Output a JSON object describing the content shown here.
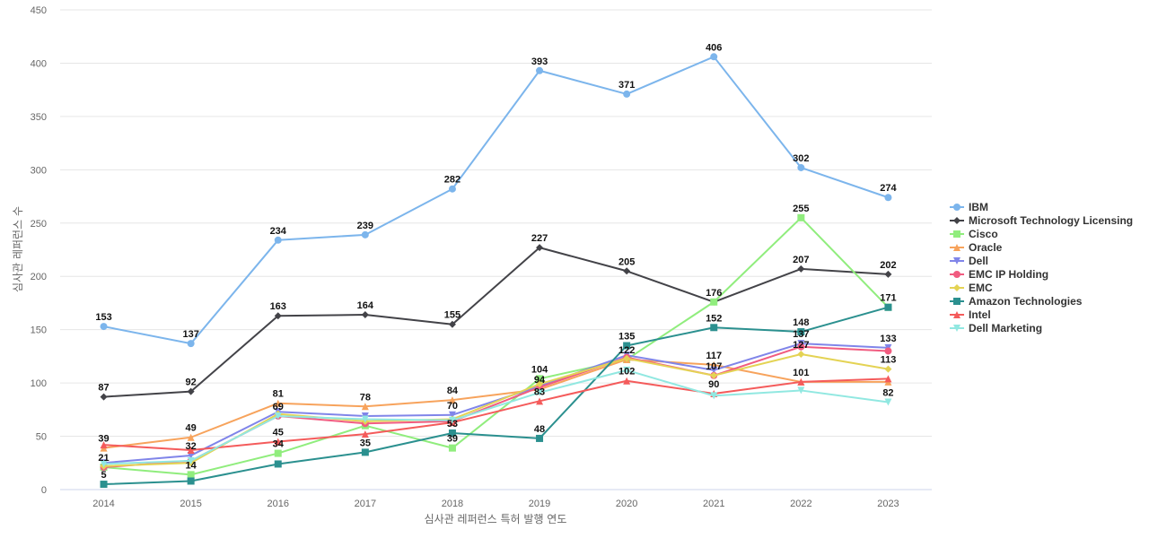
{
  "chart_data": {
    "type": "line",
    "xlabel": "심사관 레퍼런스 특허 발행 연도",
    "ylabel": "심사관 레퍼런스 수",
    "x": [
      "2014",
      "2015",
      "2016",
      "2017",
      "2018",
      "2019",
      "2020",
      "2021",
      "2022",
      "2023"
    ],
    "ylim": [
      0,
      450
    ],
    "yticks": [
      0,
      50,
      100,
      150,
      200,
      250,
      300,
      350,
      400,
      450
    ],
    "grid": true,
    "legend_position": "right",
    "series": [
      {
        "name": "IBM",
        "color": "#7cb5ec",
        "marker": "circle",
        "values": [
          153,
          137,
          234,
          239,
          282,
          393,
          371,
          406,
          302,
          274
        ],
        "labeled": [
          true,
          true,
          true,
          true,
          true,
          true,
          true,
          true,
          true,
          true
        ]
      },
      {
        "name": "Microsoft Technology Licensing",
        "color": "#434348",
        "marker": "diamond",
        "values": [
          87,
          92,
          163,
          164,
          155,
          227,
          205,
          176,
          207,
          202
        ],
        "labeled": [
          true,
          true,
          true,
          true,
          true,
          true,
          true,
          false,
          true,
          true
        ]
      },
      {
        "name": "Cisco",
        "color": "#90ed7d",
        "marker": "square",
        "values": [
          21,
          14,
          34,
          60,
          39,
          104,
          122,
          176,
          255,
          171
        ],
        "labeled": [
          true,
          true,
          true,
          false,
          true,
          true,
          true,
          true,
          true,
          true
        ]
      },
      {
        "name": "Oracle",
        "color": "#f7a35c",
        "marker": "triangle",
        "values": [
          39,
          49,
          81,
          78,
          84,
          94,
          122,
          117,
          101,
          101
        ],
        "labeled": [
          true,
          true,
          true,
          true,
          true,
          true,
          false,
          true,
          true,
          false
        ]
      },
      {
        "name": "Dell",
        "color": "#8085e9",
        "marker": "triangle-down",
        "values": [
          25,
          32,
          73,
          69,
          70,
          97,
          126,
          112,
          137,
          133
        ],
        "labeled": [
          false,
          true,
          false,
          false,
          true,
          false,
          false,
          false,
          true,
          true
        ]
      },
      {
        "name": "EMC IP Holding",
        "color": "#f15c80",
        "marker": "circle",
        "values": [
          21,
          27,
          69,
          62,
          64,
          96,
          124,
          107,
          134,
          130
        ],
        "labeled": [
          false,
          false,
          true,
          false,
          false,
          false,
          false,
          true,
          false,
          false
        ]
      },
      {
        "name": "EMC",
        "color": "#e4d354",
        "marker": "diamond",
        "values": [
          22,
          25,
          71,
          64,
          66,
          99,
          123,
          107,
          127,
          113
        ],
        "labeled": [
          false,
          false,
          false,
          false,
          false,
          false,
          false,
          false,
          true,
          true
        ]
      },
      {
        "name": "Amazon Technologies",
        "color": "#2b908f",
        "marker": "square",
        "values": [
          5,
          8,
          24,
          35,
          53,
          48,
          135,
          152,
          148,
          171
        ],
        "labeled": [
          true,
          false,
          false,
          true,
          true,
          true,
          true,
          true,
          true,
          false
        ]
      },
      {
        "name": "Intel",
        "color": "#f45b5b",
        "marker": "triangle",
        "values": [
          42,
          37,
          45,
          52,
          63,
          83,
          102,
          90,
          101,
          104
        ],
        "labeled": [
          false,
          false,
          true,
          false,
          false,
          true,
          true,
          true,
          false,
          false
        ]
      },
      {
        "name": "Dell Marketing",
        "color": "#91e8e1",
        "marker": "triangle-down",
        "values": [
          24,
          27,
          69,
          66,
          65,
          91,
          112,
          88,
          93,
          82
        ],
        "labeled": [
          false,
          false,
          false,
          false,
          false,
          false,
          false,
          false,
          false,
          true
        ]
      }
    ]
  }
}
